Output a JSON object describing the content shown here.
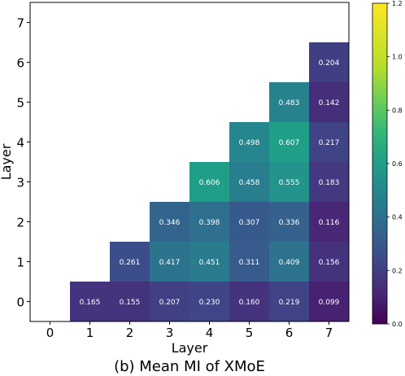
{
  "chart_data": {
    "type": "heatmap",
    "title": "(b) Mean MI of XMoE",
    "xlabel": "Layer",
    "ylabel": "Layer",
    "x_categories": [
      "0",
      "1",
      "2",
      "3",
      "4",
      "5",
      "6",
      "7"
    ],
    "y_categories": [
      "0",
      "1",
      "2",
      "3",
      "4",
      "5",
      "6",
      "7"
    ],
    "cells": [
      {
        "x": 1,
        "y": 0,
        "value": 0.165,
        "label": "0.165"
      },
      {
        "x": 2,
        "y": 0,
        "value": 0.155,
        "label": "0.155"
      },
      {
        "x": 3,
        "y": 0,
        "value": 0.207,
        "label": "0.207"
      },
      {
        "x": 4,
        "y": 0,
        "value": 0.23,
        "label": "0.230"
      },
      {
        "x": 5,
        "y": 0,
        "value": 0.16,
        "label": "0.160"
      },
      {
        "x": 6,
        "y": 0,
        "value": 0.219,
        "label": "0.219"
      },
      {
        "x": 7,
        "y": 0,
        "value": 0.099,
        "label": "0.099"
      },
      {
        "x": 2,
        "y": 1,
        "value": 0.261,
        "label": "0.261"
      },
      {
        "x": 3,
        "y": 1,
        "value": 0.417,
        "label": "0.417"
      },
      {
        "x": 4,
        "y": 1,
        "value": 0.451,
        "label": "0.451"
      },
      {
        "x": 5,
        "y": 1,
        "value": 0.311,
        "label": "0.311"
      },
      {
        "x": 6,
        "y": 1,
        "value": 0.409,
        "label": "0.409"
      },
      {
        "x": 7,
        "y": 1,
        "value": 0.156,
        "label": "0.156"
      },
      {
        "x": 3,
        "y": 2,
        "value": 0.346,
        "label": "0.346"
      },
      {
        "x": 4,
        "y": 2,
        "value": 0.398,
        "label": "0.398"
      },
      {
        "x": 5,
        "y": 2,
        "value": 0.307,
        "label": "0.307"
      },
      {
        "x": 6,
        "y": 2,
        "value": 0.336,
        "label": "0.336"
      },
      {
        "x": 7,
        "y": 2,
        "value": 0.116,
        "label": "0.116"
      },
      {
        "x": 4,
        "y": 3,
        "value": 0.606,
        "label": "0.606"
      },
      {
        "x": 5,
        "y": 3,
        "value": 0.458,
        "label": "0.458"
      },
      {
        "x": 6,
        "y": 3,
        "value": 0.555,
        "label": "0.555"
      },
      {
        "x": 7,
        "y": 3,
        "value": 0.183,
        "label": "0.183"
      },
      {
        "x": 5,
        "y": 4,
        "value": 0.498,
        "label": "0.498"
      },
      {
        "x": 6,
        "y": 4,
        "value": 0.607,
        "label": "0.607"
      },
      {
        "x": 7,
        "y": 4,
        "value": 0.217,
        "label": "0.217"
      },
      {
        "x": 6,
        "y": 5,
        "value": 0.483,
        "label": "0.483"
      },
      {
        "x": 7,
        "y": 5,
        "value": 0.142,
        "label": "0.142"
      },
      {
        "x": 7,
        "y": 6,
        "value": 0.204,
        "label": "0.204"
      }
    ],
    "colorbar": {
      "colormap": "viridis",
      "range": [
        0.0,
        1.2
      ],
      "ticks": [
        "0.0",
        "0.2",
        "0.4",
        "0.6",
        "0.8",
        "1.0",
        "1.2"
      ],
      "placement": "right"
    },
    "grid": false,
    "legend": "none"
  }
}
